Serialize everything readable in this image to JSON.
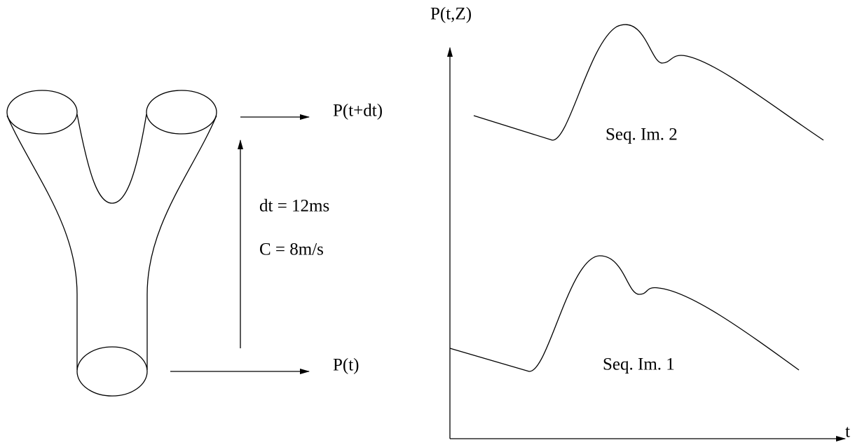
{
  "left": {
    "top_output": "P(t+dt)",
    "bottom_input": "P(t)",
    "interval": "dt = 12ms",
    "speed": "C = 8m/s"
  },
  "graph": {
    "y_axis_label": "P(t,Z)",
    "x_axis_label": "t",
    "curve_upper_label": "Seq. Im. 2",
    "curve_lower_label": "Seq. Im. 1"
  }
}
